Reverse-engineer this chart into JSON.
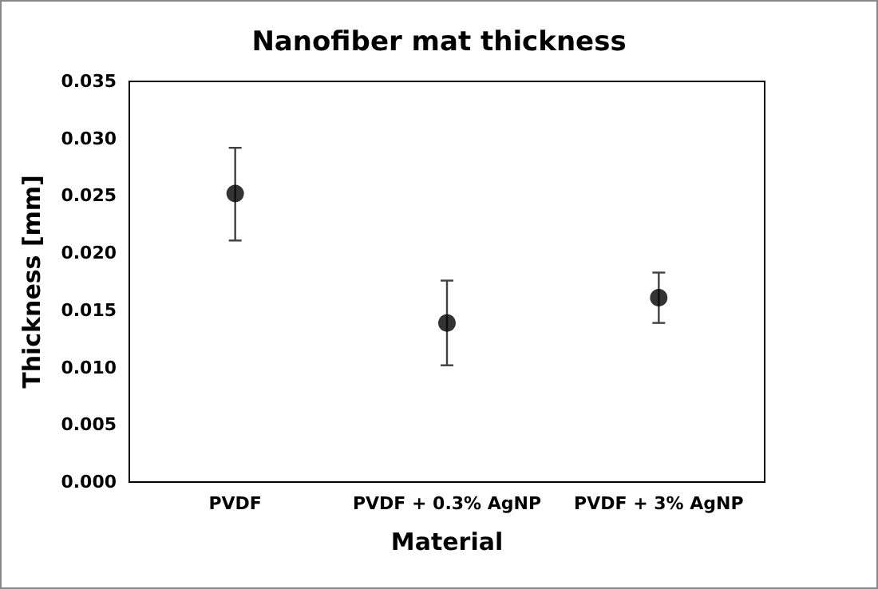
{
  "chart_data": {
    "type": "scatter",
    "title": "Nanofiber mat thickness",
    "xlabel": "Material",
    "ylabel": "Thickness [mm]",
    "categories": [
      "PVDF",
      "PVDF + 0.3% AgNP",
      "PVDF + 3% AgNP"
    ],
    "values": [
      0.0252,
      0.0139,
      0.0161
    ],
    "errors": [
      [
        0.0211,
        0.0292
      ],
      [
        0.0102,
        0.0176
      ],
      [
        0.0139,
        0.0183
      ]
    ],
    "color": "#000000",
    "marker": "circle",
    "ylim": [
      0,
      0.035
    ],
    "yticks": [
      {
        "value": 0,
        "label": "0.000"
      },
      0.005,
      {
        "value": 0.01,
        "label": "0.010"
      },
      0.015,
      {
        "value": 0.02,
        "label": "0.020"
      },
      0.025,
      {
        "value": 0.03,
        "label": "0.030"
      },
      0.035
    ],
    "grid": false
  }
}
